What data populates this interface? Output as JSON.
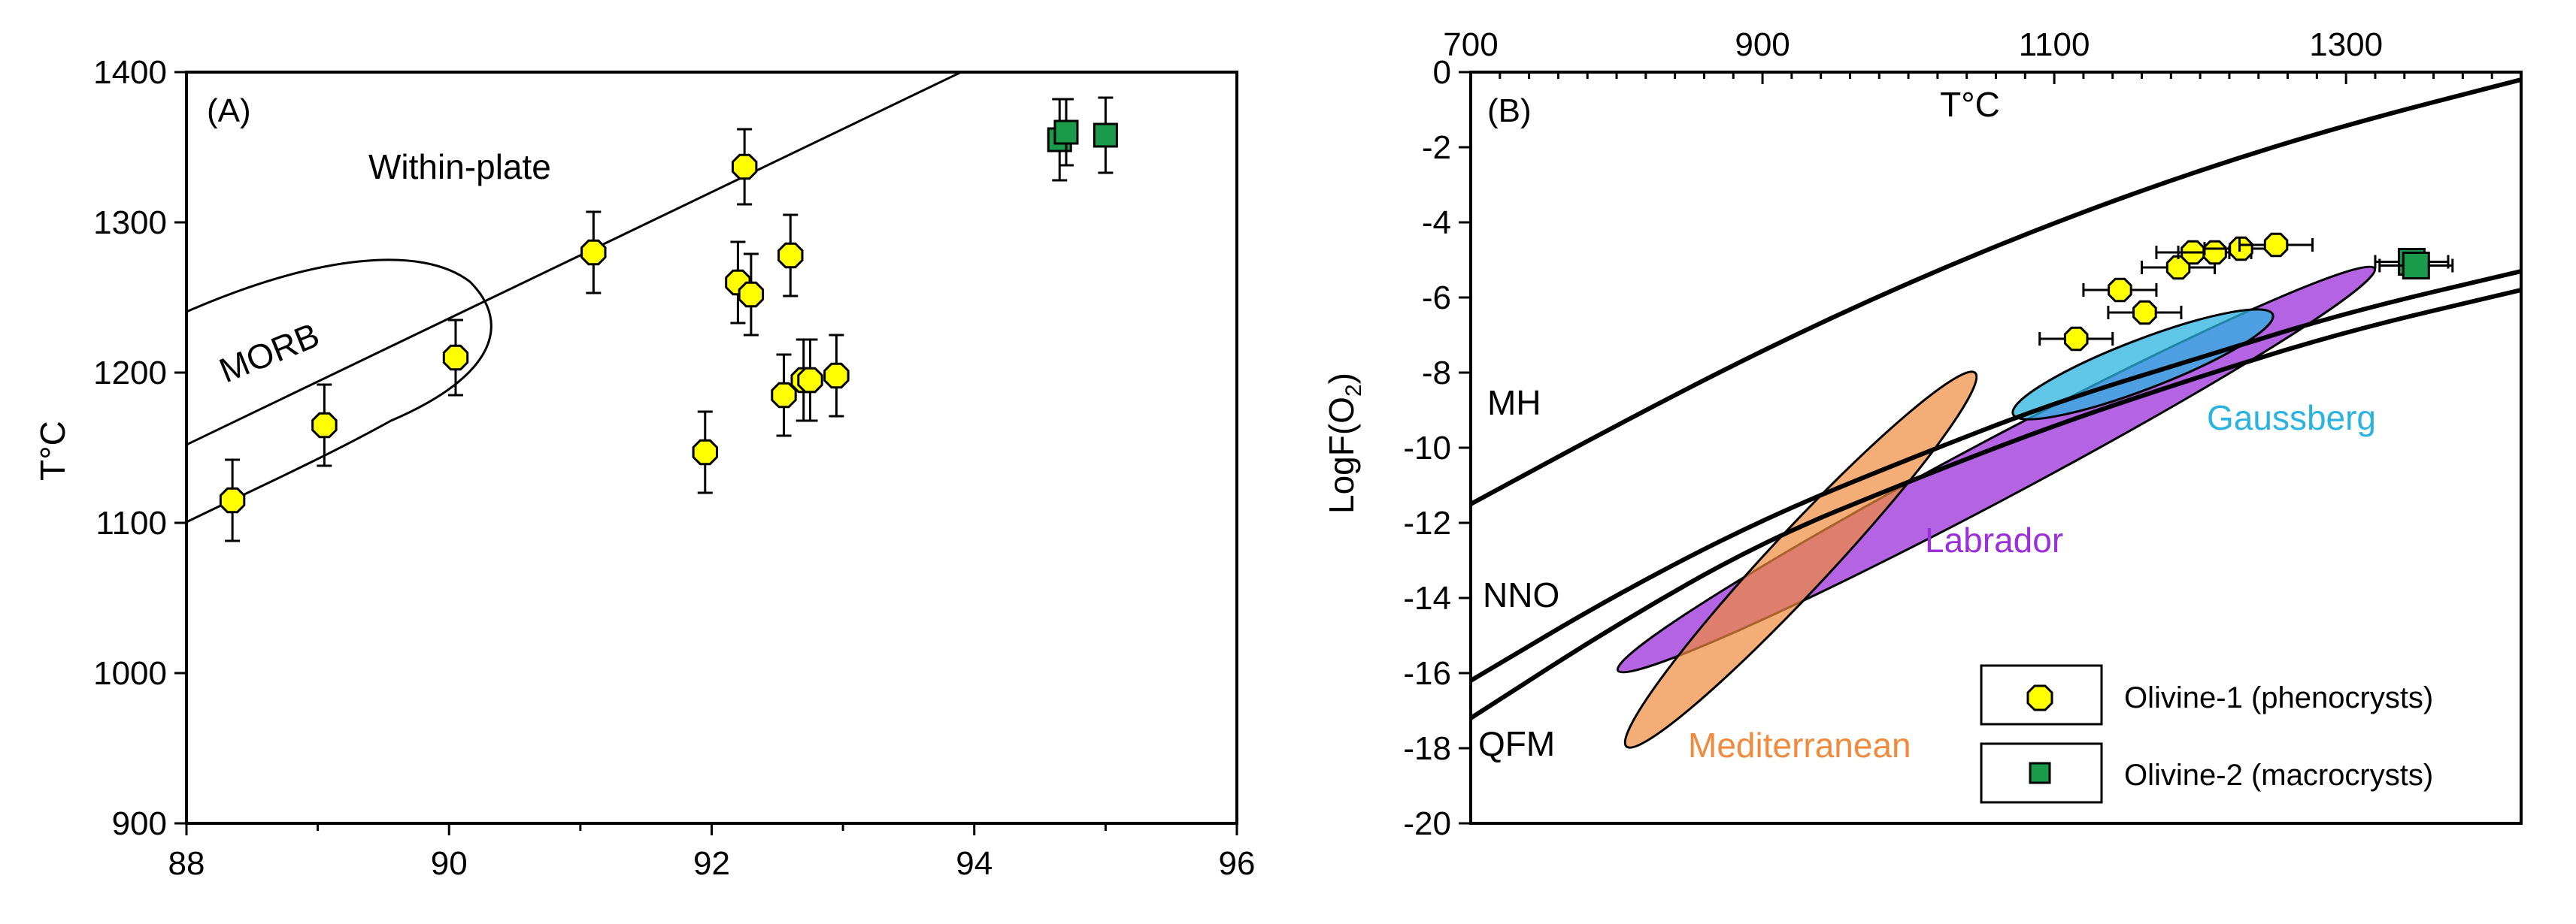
{
  "chart_data": [
    {
      "panel": "(A)",
      "type": "scatter",
      "xlabel": "",
      "ylabel": "T°C",
      "xlim": [
        88,
        96
      ],
      "ylim": [
        900,
        1400
      ],
      "x_ticks": [
        "88",
        "90",
        "92",
        "94",
        "96"
      ],
      "y_ticks": [
        "900",
        "1000",
        "1100",
        "1200",
        "1300",
        "1400"
      ],
      "annotations": [
        "Within-plate",
        "MORB"
      ],
      "series": [
        {
          "name": "Olivine-1 (phenocrysts)",
          "color": "#ffff00",
          "marker": "octagon",
          "points": [
            {
              "x": 88.35,
              "y": 1115,
              "err": 27
            },
            {
              "x": 89.05,
              "y": 1165,
              "err": 27
            },
            {
              "x": 90.05,
              "y": 1210,
              "err": 25
            },
            {
              "x": 91.1,
              "y": 1280,
              "err": 27
            },
            {
              "x": 91.95,
              "y": 1147,
              "err": 27
            },
            {
              "x": 92.2,
              "y": 1260,
              "err": 27
            },
            {
              "x": 92.25,
              "y": 1337,
              "err": 25
            },
            {
              "x": 92.3,
              "y": 1252,
              "err": 27
            },
            {
              "x": 92.55,
              "y": 1185,
              "err": 27
            },
            {
              "x": 92.6,
              "y": 1278,
              "err": 27
            },
            {
              "x": 92.7,
              "y": 1195,
              "err": 27
            },
            {
              "x": 92.75,
              "y": 1195,
              "err": 27
            },
            {
              "x": 92.95,
              "y": 1198,
              "err": 27
            }
          ]
        },
        {
          "name": "Olivine-2 (macrocrysts)",
          "color": "#1a9b4b",
          "marker": "square",
          "points": [
            {
              "x": 94.65,
              "y": 1355,
              "err": 27
            },
            {
              "x": 94.7,
              "y": 1360,
              "err": 22
            },
            {
              "x": 95.0,
              "y": 1358,
              "err": 25
            }
          ]
        }
      ],
      "lines": [
        {
          "name": "within-plate boundary",
          "from": [
            88,
            1152
          ],
          "to": [
            93.9,
            1400
          ]
        }
      ]
    },
    {
      "panel": "(B)",
      "type": "scatter",
      "xlabel": "T°C",
      "ylabel_main": "LogF(O",
      "ylabel_sub": "2",
      "ylabel_end": ")",
      "xlim": [
        700,
        1420
      ],
      "ylim": [
        -20,
        0
      ],
      "x_ticks": [
        "700",
        "900",
        "1100",
        "1300"
      ],
      "y_ticks": [
        "0",
        "-2",
        "-4",
        "-6",
        "-8",
        "-10",
        "-12",
        "-14",
        "-16",
        "-18",
        "-20"
      ],
      "buffers": [
        {
          "name": "MH",
          "points": [
            [
              700,
              -11.5
            ],
            [
              800,
              -9.4
            ],
            [
              900,
              -7.4
            ],
            [
              1000,
              -5.6
            ],
            [
              1100,
              -4.0
            ],
            [
              1200,
              -2.6
            ],
            [
              1300,
              -1.4
            ],
            [
              1420,
              -0.2
            ]
          ]
        },
        {
          "name": "NNO",
          "points": [
            [
              700,
              -16.2
            ],
            [
              800,
              -13.9
            ],
            [
              900,
              -11.9
            ],
            [
              1000,
              -10.3
            ],
            [
              1100,
              -8.8
            ],
            [
              1200,
              -7.6
            ],
            [
              1300,
              -6.4
            ],
            [
              1420,
              -5.3
            ]
          ]
        },
        {
          "name": "QFM",
          "points": [
            [
              700,
              -17.2
            ],
            [
              800,
              -14.7
            ],
            [
              900,
              -12.5
            ],
            [
              1000,
              -10.9
            ],
            [
              1100,
              -9.4
            ],
            [
              1200,
              -8.1
            ],
            [
              1300,
              -6.9
            ],
            [
              1420,
              -5.8
            ]
          ]
        }
      ],
      "fields": [
        {
          "name": "Mediterranean",
          "color": "#f08a3c"
        },
        {
          "name": "Labrador",
          "color": "#9b30d9"
        },
        {
          "name": "Gaussberg",
          "color": "#2bb3e0"
        }
      ],
      "series": [
        {
          "name": "Olivine-1 (phenocrysts)",
          "color": "#ffff00",
          "marker": "octagon",
          "points": [
            {
              "x": 1115,
              "y": -7.1,
              "xerr": 25
            },
            {
              "x": 1145,
              "y": -5.8,
              "xerr": 25
            },
            {
              "x": 1162,
              "y": -6.4,
              "xerr": 25
            },
            {
              "x": 1185,
              "y": -5.2,
              "xerr": 25
            },
            {
              "x": 1195,
              "y": -4.8,
              "xerr": 25
            },
            {
              "x": 1210,
              "y": -4.8,
              "xerr": 25
            },
            {
              "x": 1228,
              "y": -4.7,
              "xerr": 25
            },
            {
              "x": 1252,
              "y": -4.6,
              "xerr": 25
            }
          ]
        },
        {
          "name": "Olivine-2 (macrocrysts)",
          "color": "#1a9b4b",
          "marker": "square",
          "points": [
            {
              "x": 1345,
              "y": -5.05,
              "xerr": 25
            },
            {
              "x": 1348,
              "y": -5.15,
              "xerr": 25
            }
          ]
        }
      ],
      "legend": [
        "Olivine-1 (phenocrysts)",
        "Olivine-2 (macrocrysts)"
      ]
    }
  ]
}
